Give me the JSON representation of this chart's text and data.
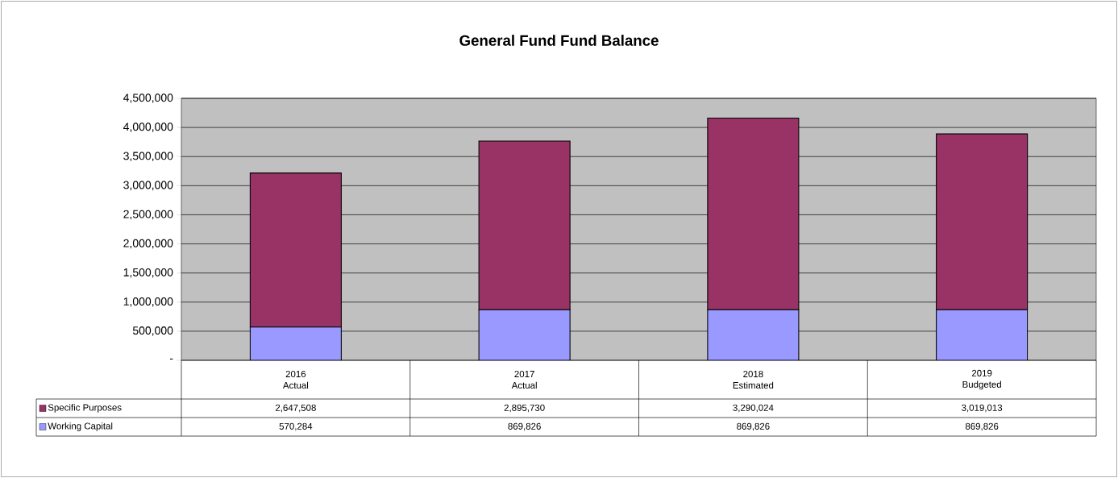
{
  "chart_data": {
    "type": "bar",
    "title": "General Fund Fund Balance",
    "stacked": true,
    "categories": [
      "2016 Actual",
      "2017 Actual",
      "2018 Estimated",
      "2019 Budgeted"
    ],
    "series": [
      {
        "name": "Working Capital",
        "color": "#9999ff",
        "values": [
          570284,
          869826,
          869826,
          869826
        ],
        "value_labels": [
          "570,284",
          "869,826",
          "869,826",
          "869,826"
        ]
      },
      {
        "name": "Specific Purposes",
        "color": "#993366",
        "values": [
          2647508,
          2895730,
          3290024,
          3019013
        ],
        "value_labels": [
          "2,647,508",
          "2,895,730",
          "3,290,024",
          "3,019,013"
        ]
      }
    ],
    "ylim": [
      0,
      4500000
    ],
    "yticks": [
      {
        "value": 0,
        "label": "-"
      },
      {
        "value": 500000,
        "label": "500,000"
      },
      {
        "value": 1000000,
        "label": "1,000,000"
      },
      {
        "value": 1500000,
        "label": "1,500,000"
      },
      {
        "value": 2000000,
        "label": "2,000,000"
      },
      {
        "value": 2500000,
        "label": "2,500,000"
      },
      {
        "value": 3000000,
        "label": "3,000,000"
      },
      {
        "value": 3500000,
        "label": "3,500,000"
      },
      {
        "value": 4000000,
        "label": "4,000,000"
      },
      {
        "value": 4500000,
        "label": "4,500,000"
      }
    ],
    "grid": "y",
    "legend": "bottom left"
  }
}
